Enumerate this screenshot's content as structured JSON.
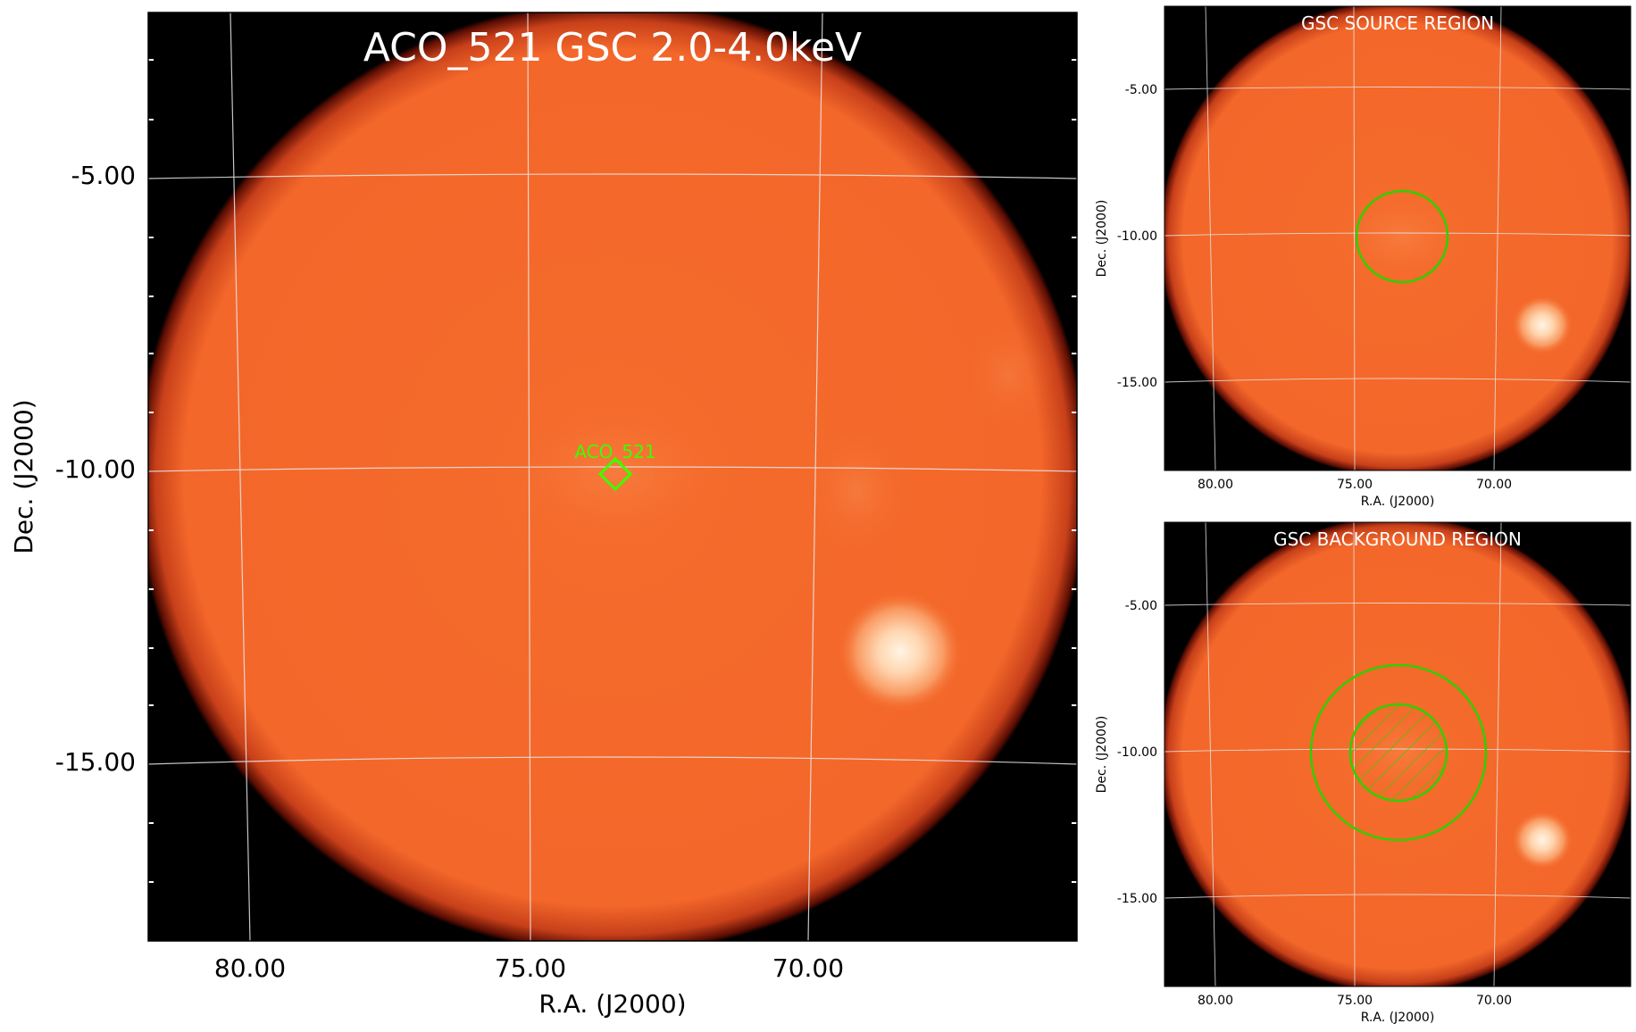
{
  "colors": {
    "frame": "#000000",
    "disk": "#f4692a",
    "disk_edge": "#8a1a05",
    "bright_source": "#fff1dc",
    "grid": "#e8e8e8",
    "region": "#2fd000",
    "marker": "#3dff00"
  },
  "main": {
    "title": "ACO_521 GSC 2.0-4.0keV",
    "xlabel": "R.A. (J2000)",
    "ylabel": "Dec. (J2000)",
    "xticks": [
      "80.00",
      "75.00",
      "70.00"
    ],
    "yticks": [
      "-5.00",
      "-10.00",
      "-15.00"
    ],
    "marker_label": "ACO_521"
  },
  "source_panel": {
    "title": "GSC SOURCE REGION",
    "xlabel": "R.A. (J2000)",
    "ylabel": "Dec. (J2000)",
    "xticks": [
      "80.00",
      "75.00",
      "70.00"
    ],
    "yticks": [
      "-5.00",
      "-10.00",
      "-15.00"
    ]
  },
  "background_panel": {
    "title": "GSC BACKGROUND REGION",
    "xlabel": "R.A. (J2000)",
    "ylabel": "Dec. (J2000)",
    "xticks": [
      "80.00",
      "75.00",
      "70.00"
    ],
    "yticks": [
      "-5.00",
      "-10.00",
      "-15.00"
    ]
  }
}
